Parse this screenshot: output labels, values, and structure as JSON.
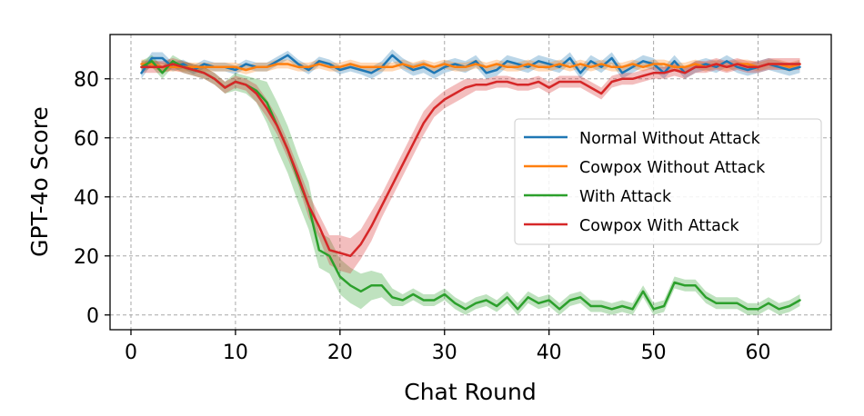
{
  "chart_data": {
    "type": "line",
    "title": "",
    "xlabel": "Chat Round",
    "ylabel": "GPT-4o Score",
    "xlim": [
      -2,
      67
    ],
    "ylim": [
      -5,
      95
    ],
    "xticks": [
      0,
      10,
      20,
      30,
      40,
      50,
      60
    ],
    "yticks": [
      0,
      20,
      40,
      60,
      80
    ],
    "grid": true,
    "legend_position": "center-right",
    "x": [
      1,
      2,
      3,
      4,
      5,
      6,
      7,
      8,
      9,
      10,
      11,
      12,
      13,
      14,
      15,
      16,
      17,
      18,
      19,
      20,
      21,
      22,
      23,
      24,
      25,
      26,
      27,
      28,
      29,
      30,
      31,
      32,
      33,
      34,
      35,
      36,
      37,
      38,
      39,
      40,
      41,
      42,
      43,
      44,
      45,
      46,
      47,
      48,
      49,
      50,
      51,
      52,
      53,
      54,
      55,
      56,
      57,
      58,
      59,
      60,
      61,
      62,
      63,
      64
    ],
    "series": [
      {
        "name": "Normal Without Attack",
        "color": "#1f77b4",
        "values": [
          82,
          87,
          87,
          84,
          85,
          83,
          85,
          84,
          84,
          83,
          85,
          84,
          84,
          86,
          88,
          85,
          83,
          86,
          85,
          83,
          84,
          83,
          82,
          84,
          88,
          85,
          83,
          84,
          82,
          84,
          85,
          84,
          86,
          82,
          83,
          86,
          85,
          84,
          86,
          85,
          84,
          87,
          82,
          86,
          84,
          87,
          82,
          84,
          86,
          85,
          82,
          86,
          82,
          84,
          85,
          84,
          86,
          84,
          83,
          84,
          85,
          84,
          83,
          84
        ],
        "band": [
          2,
          2,
          2,
          1.5,
          1.5,
          1.5,
          1.5,
          1.5,
          1.5,
          1.5,
          1.5,
          1.5,
          1.5,
          1.5,
          1.5,
          1.5,
          1.5,
          1.5,
          1.5,
          1.5,
          1.5,
          1.5,
          2,
          2,
          2,
          2,
          2,
          2,
          2,
          2,
          2,
          2,
          2,
          2,
          2,
          2,
          2,
          2,
          2,
          2,
          2,
          2,
          2,
          2,
          2,
          2,
          2,
          2,
          2,
          2,
          2,
          2,
          2,
          2,
          2,
          2,
          2,
          2,
          2,
          2,
          2,
          2,
          2,
          2
        ]
      },
      {
        "name": "Cowpox Without Attack",
        "color": "#ff7f0e",
        "values": [
          85,
          85,
          84,
          84,
          84,
          84,
          84,
          84,
          84,
          84,
          83,
          84,
          84,
          85,
          85,
          84,
          84,
          85,
          84,
          84,
          85,
          84,
          84,
          84,
          84,
          85,
          84,
          85,
          84,
          85,
          84,
          84,
          85,
          84,
          85,
          84,
          84,
          85,
          84,
          84,
          85,
          84,
          85,
          84,
          85,
          84,
          84,
          85,
          84,
          85,
          85,
          84,
          84,
          85,
          84,
          85,
          84,
          85,
          85,
          84,
          85,
          85,
          84,
          85
        ],
        "band": [
          1.5,
          1.5,
          1.5,
          1.5,
          1.5,
          1.5,
          1.5,
          1.5,
          1.5,
          1.5,
          1.5,
          1.5,
          1.5,
          1.5,
          1.5,
          1.5,
          1.5,
          1.5,
          1.5,
          1.5,
          1.5,
          1.5,
          1.5,
          1.5,
          1.5,
          1.5,
          1.5,
          1.5,
          1.5,
          1.5,
          1.5,
          1.5,
          1.5,
          1.5,
          1.5,
          1.5,
          1.5,
          1.5,
          1.5,
          1.5,
          1.5,
          1.5,
          1.5,
          1.5,
          1.5,
          1.5,
          1.5,
          1.5,
          1.5,
          1.5,
          1.5,
          1.5,
          1.5,
          1.5,
          1.5,
          1.5,
          1.5,
          1.5,
          1.5,
          1.5,
          1.5,
          1.5,
          1.5,
          1.5
        ]
      },
      {
        "name": "With Attack",
        "color": "#2ca02c",
        "values": [
          84,
          86,
          82,
          86,
          84,
          83,
          82,
          80,
          77,
          79,
          78,
          76,
          72,
          64,
          56,
          46,
          37,
          22,
          20,
          13,
          10,
          8,
          10,
          10,
          6,
          5,
          7,
          5,
          5,
          7,
          4,
          2,
          4,
          5,
          3,
          6,
          2,
          6,
          4,
          5,
          2,
          5,
          6,
          3,
          3,
          2,
          3,
          2,
          8,
          2,
          3,
          11,
          10,
          10,
          6,
          4,
          4,
          4,
          2,
          2,
          4,
          2,
          3,
          5
        ],
        "band": [
          2,
          2,
          2,
          2,
          2,
          2,
          2,
          2,
          2,
          3,
          3,
          4,
          7,
          8,
          8,
          8,
          8,
          6,
          6,
          6,
          6,
          6,
          5,
          4,
          3,
          2,
          2,
          2,
          2,
          2,
          2,
          2,
          2,
          2,
          2,
          2,
          2,
          2,
          2,
          2,
          2,
          2,
          2,
          2,
          2,
          2,
          2,
          2,
          2,
          2,
          2,
          2,
          2,
          2,
          2,
          2,
          2,
          2,
          2,
          2,
          2,
          2,
          2,
          2
        ]
      },
      {
        "name": "Cowpox With Attack",
        "color": "#d62728",
        "values": [
          84,
          84,
          84,
          85,
          84,
          83,
          82,
          80,
          77,
          79,
          78,
          75,
          70,
          64,
          56,
          47,
          37,
          30,
          22,
          21,
          20,
          24,
          30,
          37,
          44,
          51,
          58,
          65,
          70,
          73,
          75,
          77,
          78,
          78,
          79,
          79,
          78,
          78,
          79,
          77,
          79,
          79,
          79,
          77,
          75,
          79,
          80,
          80,
          81,
          82,
          82,
          83,
          82,
          84,
          84,
          85,
          84,
          85,
          84,
          84,
          85,
          85,
          85,
          85
        ],
        "band": [
          2,
          2,
          2,
          2,
          2,
          2,
          2,
          2,
          2,
          2,
          2,
          3,
          3,
          3,
          3,
          3,
          4,
          4,
          5,
          6,
          6,
          5,
          5,
          4,
          4,
          4,
          4,
          4,
          3,
          3,
          3,
          3,
          2,
          2,
          2,
          2,
          2,
          2,
          2,
          2,
          2,
          2,
          2,
          2,
          2,
          2,
          2,
          2,
          2,
          2,
          2,
          2,
          2,
          2,
          2,
          2,
          2,
          2,
          2,
          2,
          2,
          2,
          2,
          2
        ]
      }
    ]
  }
}
